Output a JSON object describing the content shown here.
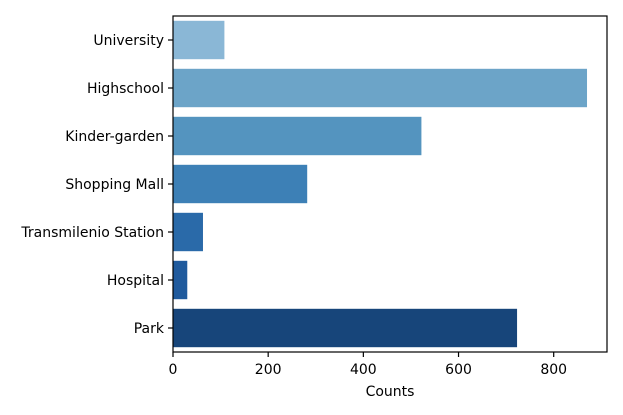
{
  "chart_data": {
    "type": "bar",
    "orientation": "horizontal",
    "categories": [
      "University",
      "Highschool",
      "Kinder-garden",
      "Shopping Mall",
      "Transmilenio Station",
      "Hospital",
      "Park"
    ],
    "values": [
      108,
      870,
      522,
      282,
      63,
      30,
      723
    ],
    "colors": [
      "#8ab7d6",
      "#6ca4c8",
      "#5494bf",
      "#3d80b6",
      "#2a6aa9",
      "#1f5a9d",
      "#17457a"
    ],
    "xlabel": "Counts",
    "ylabel": "",
    "title": "",
    "xlim": [
      0,
      912
    ],
    "xticks": [
      0,
      200,
      400,
      600,
      800
    ],
    "grid": false
  }
}
